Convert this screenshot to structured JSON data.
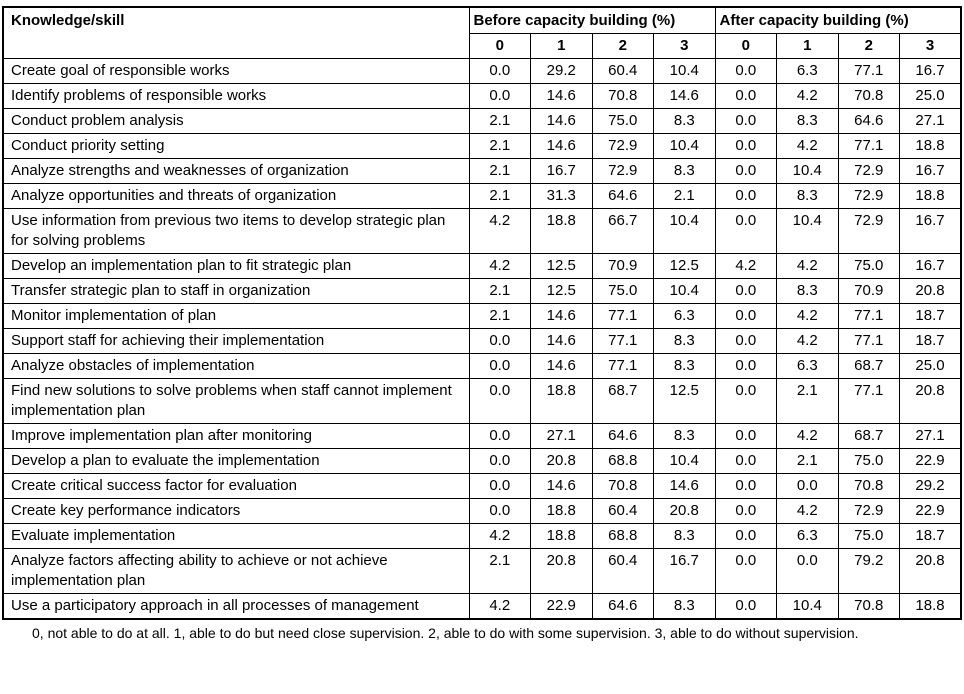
{
  "page": {
    "background": "#ffffff",
    "text_color": "#000000",
    "border_color": "#000000"
  },
  "table": {
    "header": {
      "knowledge_skill": "Knowledge/skill",
      "before_group": "Before capacity building (%)",
      "after_group": "After capacity building (%)",
      "score_levels": [
        "0",
        "1",
        "2",
        "3"
      ]
    },
    "rows": [
      {
        "label": "Create goal of responsible works",
        "before": [
          "0.0",
          "29.2",
          "60.4",
          "10.4"
        ],
        "after": [
          "0.0",
          "6.3",
          "77.1",
          "16.7"
        ]
      },
      {
        "label": "Identify problems of responsible works",
        "before": [
          "0.0",
          "14.6",
          "70.8",
          "14.6"
        ],
        "after": [
          "0.0",
          "4.2",
          "70.8",
          "25.0"
        ]
      },
      {
        "label": "Conduct problem analysis",
        "before": [
          "2.1",
          "14.6",
          "75.0",
          "8.3"
        ],
        "after": [
          "0.0",
          "8.3",
          "64.6",
          "27.1"
        ]
      },
      {
        "label": "Conduct priority setting",
        "before": [
          "2.1",
          "14.6",
          "72.9",
          "10.4"
        ],
        "after": [
          "0.0",
          "4.2",
          "77.1",
          "18.8"
        ]
      },
      {
        "label": "Analyze strengths and weaknesses of organization",
        "before": [
          "2.1",
          "16.7",
          "72.9",
          "8.3"
        ],
        "after": [
          "0.0",
          "10.4",
          "72.9",
          "16.7"
        ]
      },
      {
        "label": "Analyze opportunities and threats of organization",
        "before": [
          "2.1",
          "31.3",
          "64.6",
          "2.1"
        ],
        "after": [
          "0.0",
          "8.3",
          "72.9",
          "18.8"
        ]
      },
      {
        "label": "Use information from previous two items to develop strategic plan for solving problems",
        "before": [
          "4.2",
          "18.8",
          "66.7",
          "10.4"
        ],
        "after": [
          "0.0",
          "10.4",
          "72.9",
          "16.7"
        ]
      },
      {
        "label": "Develop an implementation plan to fit strategic plan",
        "before": [
          "4.2",
          "12.5",
          "70.9",
          "12.5"
        ],
        "after": [
          "4.2",
          "4.2",
          "75.0",
          "16.7"
        ]
      },
      {
        "label": "Transfer strategic plan to staff in organization",
        "before": [
          "2.1",
          "12.5",
          "75.0",
          "10.4"
        ],
        "after": [
          "0.0",
          "8.3",
          "70.9",
          "20.8"
        ]
      },
      {
        "label": "Monitor implementation of plan",
        "before": [
          "2.1",
          "14.6",
          "77.1",
          "6.3"
        ],
        "after": [
          "0.0",
          "4.2",
          "77.1",
          "18.7"
        ]
      },
      {
        "label": "Support staff for achieving their implementation",
        "before": [
          "0.0",
          "14.6",
          "77.1",
          "8.3"
        ],
        "after": [
          "0.0",
          "4.2",
          "77.1",
          "18.7"
        ]
      },
      {
        "label": "Analyze obstacles of implementation",
        "before": [
          "0.0",
          "14.6",
          "77.1",
          "8.3"
        ],
        "after": [
          "0.0",
          "6.3",
          "68.7",
          "25.0"
        ]
      },
      {
        "label": "Find new solutions to solve problems when staff cannot implement implementation plan",
        "before": [
          "0.0",
          "18.8",
          "68.7",
          "12.5"
        ],
        "after": [
          "0.0",
          "2.1",
          "77.1",
          "20.8"
        ]
      },
      {
        "label": "Improve implementation plan after monitoring",
        "before": [
          "0.0",
          "27.1",
          "64.6",
          "8.3"
        ],
        "after": [
          "0.0",
          "4.2",
          "68.7",
          "27.1"
        ]
      },
      {
        "label": "Develop a plan to evaluate the implementation",
        "before": [
          "0.0",
          "20.8",
          "68.8",
          "10.4"
        ],
        "after": [
          "0.0",
          "2.1",
          "75.0",
          "22.9"
        ]
      },
      {
        "label": "Create critical success factor for evaluation",
        "before": [
          "0.0",
          "14.6",
          "70.8",
          "14.6"
        ],
        "after": [
          "0.0",
          "0.0",
          "70.8",
          "29.2"
        ]
      },
      {
        "label": "Create key performance indicators",
        "before": [
          "0.0",
          "18.8",
          "60.4",
          "20.8"
        ],
        "after": [
          "0.0",
          "4.2",
          "72.9",
          "22.9"
        ]
      },
      {
        "label": "Evaluate implementation",
        "before": [
          "4.2",
          "18.8",
          "68.8",
          "8.3"
        ],
        "after": [
          "0.0",
          "6.3",
          "75.0",
          "18.7"
        ]
      },
      {
        "label": "Analyze factors affecting ability to achieve or not achieve implementation plan",
        "before": [
          "2.1",
          "20.8",
          "60.4",
          "16.7"
        ],
        "after": [
          "0.0",
          "0.0",
          "79.2",
          "20.8"
        ]
      },
      {
        "label": "Use a participatory approach in all processes of management",
        "before": [
          "4.2",
          "22.9",
          "64.6",
          "8.3"
        ],
        "after": [
          "0.0",
          "10.4",
          "70.8",
          "18.8"
        ]
      }
    ],
    "footnote": "0, not able to do at all. 1, able to do but need close supervision. 2, able to do with some supervision. 3, able to do without supervision."
  }
}
